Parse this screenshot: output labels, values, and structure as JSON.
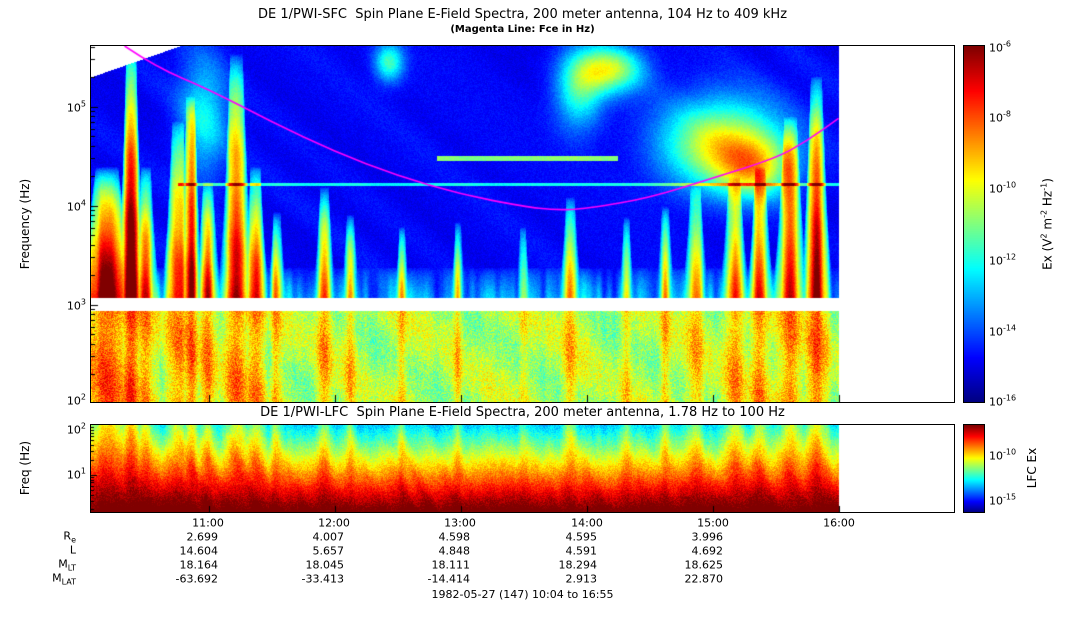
{
  "header": {
    "title": "DE 1/PWI-SFC  Spin Plane E-Field Spectra, 200 meter antenna, 104 Hz to 409 kHz",
    "subtitle": "(Magenta Line: Fce in Hz)"
  },
  "sfc": {
    "y_label": "Frequency (Hz)",
    "y_ticks": [
      {
        "base": "10",
        "exp": "5"
      },
      {
        "base": "10",
        "exp": "4"
      },
      {
        "base": "10",
        "exp": "3"
      },
      {
        "base": "10",
        "exp": "2"
      }
    ],
    "colorbar": {
      "ticks": [
        {
          "base": "10",
          "exp": "-6"
        },
        {
          "base": "10",
          "exp": "-8"
        },
        {
          "base": "10",
          "exp": "-10"
        },
        {
          "base": "10",
          "exp": "-12"
        },
        {
          "base": "10",
          "exp": "-14"
        },
        {
          "base": "10",
          "exp": "-16"
        }
      ],
      "label": {
        "pre": "Ex (V",
        "e1": "2",
        "m1": " m",
        "e2": "-2",
        "m2": " Hz",
        "e3": "-1",
        "post": ")"
      }
    }
  },
  "lfc": {
    "title": "DE 1/PWI-LFC  Spin Plane E-Field Spectra, 200 meter antenna, 1.78 Hz to 100 Hz",
    "y_label": "Freq (Hz)",
    "y_ticks": [
      {
        "base": "10",
        "exp": "2"
      },
      {
        "base": "10",
        "exp": "1"
      }
    ],
    "colorbar": {
      "ticks": [
        {
          "base": "10",
          "exp": "-10"
        },
        {
          "base": "10",
          "exp": "-15"
        }
      ],
      "label": "LFC Ex"
    }
  },
  "footer": "1982-05-27 (147) 10:04 to 16:55",
  "chart_data": [
    {
      "type": "heatmap",
      "instrument": "DE 1/PWI-SFC",
      "title": "Spin Plane E-Field Spectra, 200 meter antenna, 104 Hz to 409 kHz",
      "ylabel": "Frequency (Hz)",
      "y_scale": "log",
      "y_range_hz": [
        104,
        409000
      ],
      "x_start": "10:04",
      "x_end": "16:55",
      "data_end": "16:00",
      "x_ticks": [
        "11:00",
        "12:00",
        "13:00",
        "14:00",
        "15:00",
        "16:00"
      ],
      "gap_band_hz": [
        880,
        1190
      ],
      "colorbar": {
        "label": "Ex (V^2 m^-2 Hz^-1)",
        "scale": "log",
        "min": 1e-16,
        "max": 1e-06,
        "tick_exps": [
          -6,
          -8,
          -10,
          -12,
          -14,
          -16
        ]
      },
      "overlay_line": {
        "name": "Fce",
        "color": "#FF00FF",
        "points_time_hz": [
          [
            "10:20",
            409000
          ],
          [
            "10:35",
            250000
          ],
          [
            "11:00",
            150000
          ],
          [
            "11:30",
            70000
          ],
          [
            "12:00",
            35000
          ],
          [
            "12:30",
            20000
          ],
          [
            "13:00",
            13000
          ],
          [
            "13:30",
            9800
          ],
          [
            "13:45",
            9000
          ],
          [
            "14:00",
            9300
          ],
          [
            "14:30",
            12000
          ],
          [
            "15:00",
            19000
          ],
          [
            "15:30",
            30000
          ],
          [
            "15:45",
            45000
          ],
          [
            "16:00",
            76000
          ]
        ]
      },
      "ephemeris": {
        "tick_times": [
          "11:00",
          "12:00",
          "13:00",
          "14:00",
          "15:00"
        ],
        "rows": [
          {
            "label": "R",
            "sub": "e",
            "values": [
              "2.699",
              "4.007",
              "4.598",
              "4.595",
              "3.996"
            ]
          },
          {
            "label": "L",
            "sub": "",
            "values": [
              "14.604",
              "5.657",
              "4.848",
              "4.591",
              "4.692"
            ]
          },
          {
            "label": "M",
            "sub": "LT",
            "values": [
              "18.164",
              "18.045",
              "18.111",
              "18.294",
              "18.625"
            ]
          },
          {
            "label": "M",
            "sub": "LAT",
            "values": [
              "-63.692",
              "-33.413",
              "-14.414",
              "2.913",
              "22.870"
            ]
          }
        ]
      }
    },
    {
      "type": "heatmap",
      "instrument": "DE 1/PWI-LFC",
      "title": "Spin Plane E-Field Spectra, 200 meter antenna, 1.78 Hz to 100 Hz",
      "ylabel": "Freq (Hz)",
      "y_scale": "log",
      "y_range_hz": [
        1.78,
        100
      ],
      "x_start": "10:04",
      "x_end": "16:55",
      "data_end": "16:00",
      "colorbar": {
        "label": "LFC Ex",
        "scale": "log",
        "tick_exps": [
          -10,
          -15
        ]
      }
    }
  ]
}
